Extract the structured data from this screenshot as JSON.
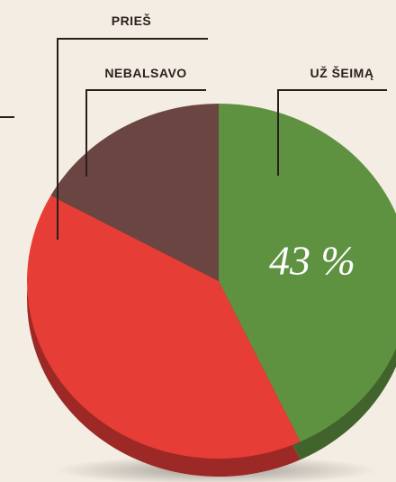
{
  "chart_data": {
    "type": "pie",
    "categories": [
      "UŽ ŠEIMĄ",
      "PRIEŠ",
      "NEBALSAVO"
    ],
    "values": [
      43,
      40,
      17
    ],
    "value_labels": [
      "43 %",
      null,
      null
    ],
    "colors": [
      "#5f9240",
      "#e63d36",
      "#6b4541"
    ]
  }
}
